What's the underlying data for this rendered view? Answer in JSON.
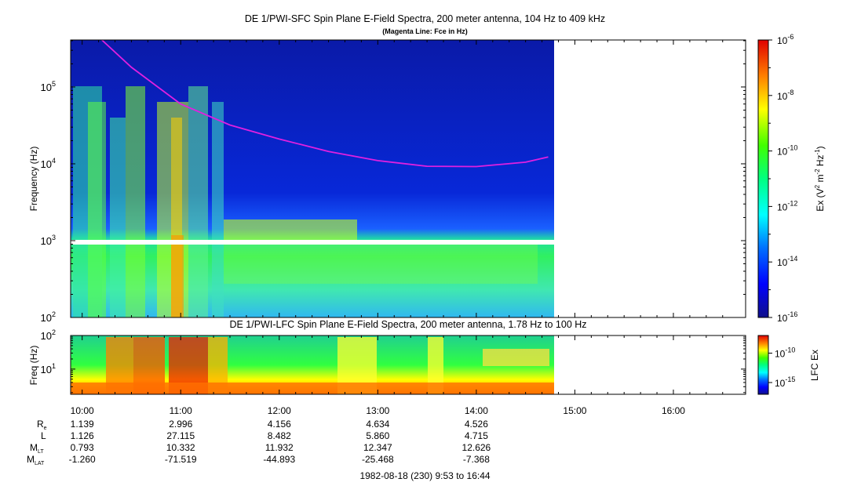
{
  "chart_data": [
    {
      "type": "heatmap",
      "title": "DE 1/PWI-SFC  Spin Plane E-Field Spectra, 200 meter antenna, 104 Hz to 409 kHz",
      "subtitle": "(Magenta Line: Fce in Hz)",
      "ylabel": "Frequency (Hz)",
      "yscale": "log",
      "ylim": [
        100,
        409000
      ],
      "yticks": [
        {
          "v": 100,
          "m": "2"
        },
        {
          "v": 1000,
          "m": "3"
        },
        {
          "v": 10000,
          "m": "4"
        },
        {
          "v": 100000,
          "m": "5"
        }
      ],
      "xlim": [
        9.883,
        16.733
      ],
      "data_end_hour": 14.78,
      "colorbar": {
        "label_base": "Ex (V",
        "label_sup1": "2",
        "label_mid": " m",
        "label_sup2": "-2",
        "label_mid2": " Hz",
        "label_sup3": "-1",
        "label_end": ")",
        "scale": "log",
        "range": [
          -16,
          -6
        ],
        "ticks": [
          {
            "v": -6,
            "m": "-6"
          },
          {
            "v": -8,
            "m": "-8"
          },
          {
            "v": -10,
            "m": "-10"
          },
          {
            "v": -12,
            "m": "-12"
          },
          {
            "v": -14,
            "m": "-14"
          },
          {
            "v": -16,
            "m": "-16"
          }
        ]
      },
      "fce_line": {
        "name": "Fce",
        "color": "#e020e0",
        "points": [
          [
            10.2,
            409000
          ],
          [
            10.5,
            180000
          ],
          [
            11.0,
            60000
          ],
          [
            11.5,
            32000
          ],
          [
            12.0,
            21000
          ],
          [
            12.5,
            14500
          ],
          [
            13.0,
            11000
          ],
          [
            13.5,
            9300
          ],
          [
            14.0,
            9200
          ],
          [
            14.5,
            10500
          ],
          [
            14.73,
            12300
          ]
        ]
      }
    },
    {
      "type": "heatmap",
      "title": "DE 1/PWI-LFC  Spin Plane E-Field Spectra, 200 meter antenna, 1.78 Hz to 100 Hz",
      "ylabel": "Freq (Hz)",
      "yscale": "log",
      "ylim": [
        1.78,
        100
      ],
      "yticks": [
        {
          "v": 10,
          "m": "1"
        },
        {
          "v": 100,
          "m": "2"
        }
      ],
      "xlim": [
        9.883,
        16.733
      ],
      "data_end_hour": 14.78,
      "colorbar": {
        "label": "LFC Ex",
        "ticks": [
          {
            "v": -10,
            "m": "-10"
          },
          {
            "v": -15,
            "m": "-15"
          }
        ]
      }
    }
  ],
  "time_axis": {
    "ticks": [
      {
        "hour": 10,
        "label": "10:00"
      },
      {
        "hour": 11,
        "label": "11:00"
      },
      {
        "hour": 12,
        "label": "12:00"
      },
      {
        "hour": 13,
        "label": "13:00"
      },
      {
        "hour": 14,
        "label": "14:00"
      },
      {
        "hour": 15,
        "label": "15:00"
      },
      {
        "hour": 16,
        "label": "16:00"
      }
    ]
  },
  "ephemeris": {
    "rows": [
      {
        "name": "R",
        "sub": "e",
        "values": [
          "1.139",
          "2.996",
          "4.156",
          "4.634",
          "4.526"
        ]
      },
      {
        "name": "L",
        "sub": "",
        "values": [
          "1.126",
          "27.115",
          "8.482",
          "5.860",
          "4.715"
        ]
      },
      {
        "name": "M",
        "sub": "LT",
        "values": [
          "0.793",
          "10.332",
          "11.932",
          "12.347",
          "12.626"
        ]
      },
      {
        "name": "M",
        "sub": "LAT",
        "values": [
          "-1.260",
          "-71.519",
          "-44.893",
          "-25.468",
          "-7.368"
        ]
      }
    ],
    "hours": [
      10,
      11,
      12,
      13,
      14
    ]
  },
  "footer": "1982-08-18 (230) 9:53 to 16:44",
  "colors": {
    "background_high": "#1840e0",
    "colormap": [
      "#10108a",
      "#0000ff",
      "#0060ff",
      "#00ffff",
      "#00ff80",
      "#40ff00",
      "#ffff00",
      "#ff8000",
      "#e00000"
    ]
  }
}
